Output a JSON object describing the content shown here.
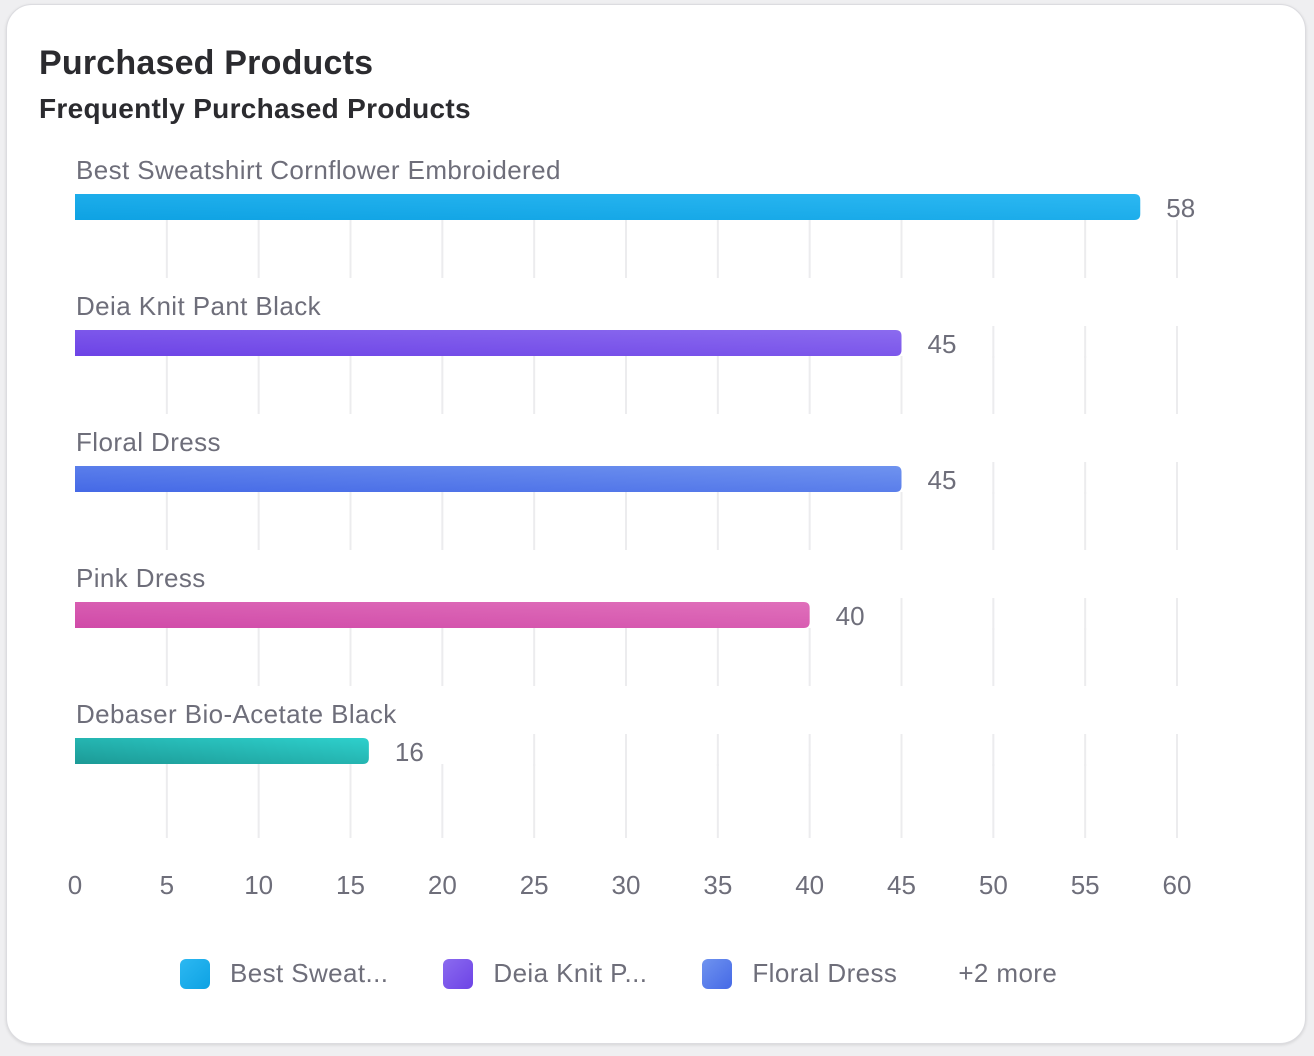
{
  "card": {
    "title": "Purchased Products",
    "subtitle": "Frequently Purchased Products"
  },
  "chart_data": {
    "type": "bar",
    "orientation": "horizontal",
    "title": "Frequently Purchased Products",
    "xlabel": "",
    "ylabel": "",
    "xlim": [
      0,
      60
    ],
    "x_ticks": [
      0,
      5,
      10,
      15,
      20,
      25,
      30,
      35,
      40,
      45,
      50,
      55,
      60
    ],
    "grid": true,
    "categories": [
      "Best Sweatshirt Cornflower Embroidered",
      "Deia Knit Pant Black",
      "Floral Dress",
      "Pink Dress",
      "Debaser Bio-Acetate Black"
    ],
    "values": [
      58,
      45,
      45,
      40,
      16
    ],
    "colors": [
      [
        "#0ea2e3",
        "#2cb8f2"
      ],
      [
        "#6d43e6",
        "#8b6bef"
      ],
      [
        "#4569e6",
        "#6f93ef"
      ],
      [
        "#d04aa8",
        "#e070bb"
      ],
      [
        "#1c9a96",
        "#2ed0cc"
      ]
    ],
    "legend_position": "bottom"
  },
  "legend": {
    "items": [
      {
        "label": "Best Sweat...",
        "color": "#15a9ea"
      },
      {
        "label": "Deia Knit P...",
        "color": "#7a52ea"
      },
      {
        "label": "Floral Dress",
        "color": "#5278ea"
      }
    ],
    "more_label": "+2 more"
  }
}
